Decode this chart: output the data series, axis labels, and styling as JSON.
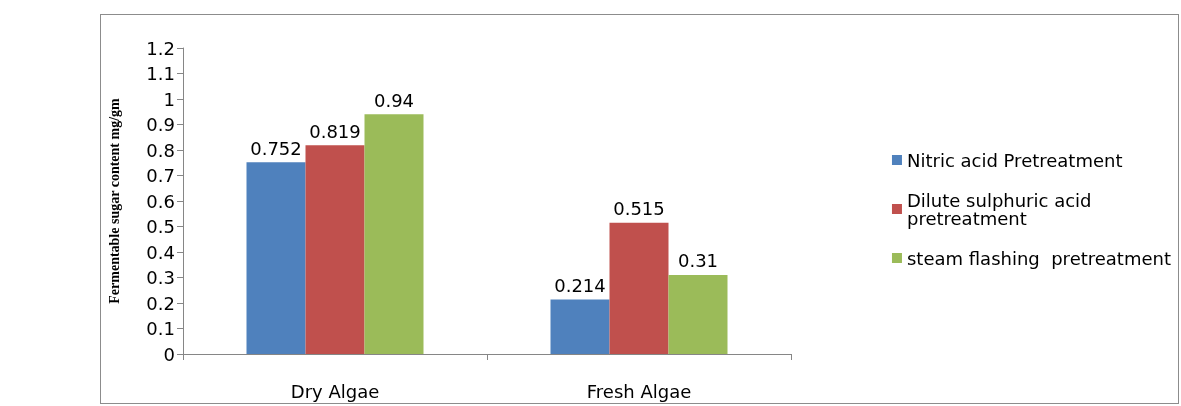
{
  "chart_data": {
    "type": "bar",
    "ylabel": "Fermentable sugar content mg/gm",
    "categories": [
      "Dry Algae",
      "Fresh Algae"
    ],
    "series": [
      {
        "name": "Nitric acid Pretreatment",
        "color": "#4f81bd",
        "values": [
          0.752,
          0.214
        ]
      },
      {
        "name": "Dilute sulphuric acid pretreatment",
        "color": "#c0504d",
        "values": [
          0.819,
          0.515
        ]
      },
      {
        "name": "steam flashing  pretreatment",
        "color": "#9bbb59",
        "values": [
          0.94,
          0.31
        ]
      }
    ],
    "ylim": [
      0,
      1.2
    ],
    "yticks": [
      0,
      0.1,
      0.2,
      0.3,
      0.4,
      0.5,
      0.6,
      0.7,
      0.8,
      0.9,
      1,
      1.1,
      1.2
    ],
    "data_labels": true,
    "grid": false,
    "legend": "right"
  }
}
